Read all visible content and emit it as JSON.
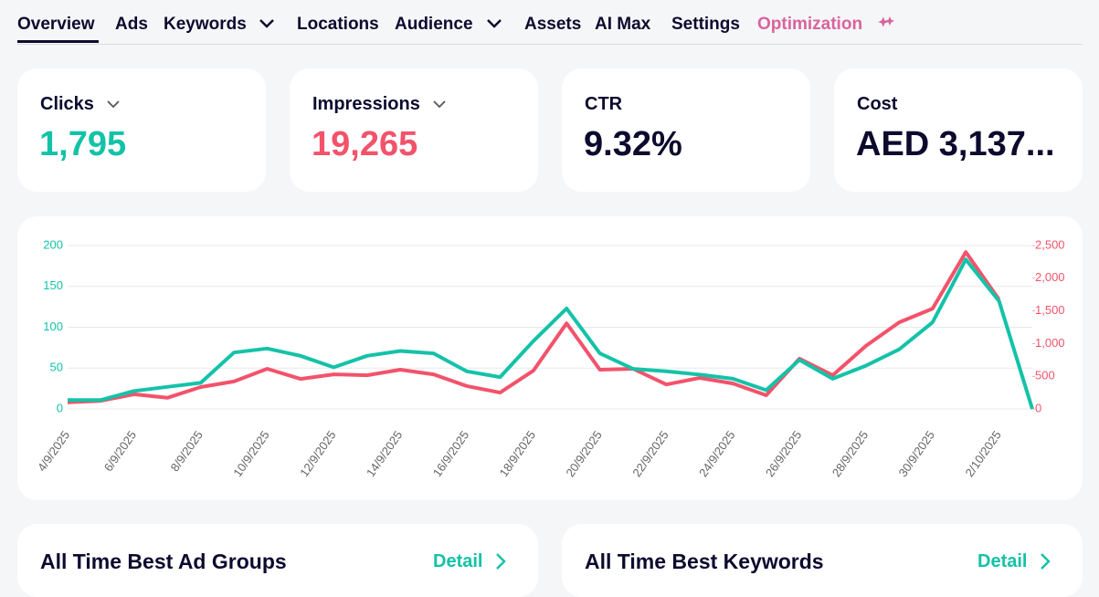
{
  "tabs": [
    "Overview",
    "Ads",
    "Keywords",
    "Locations",
    "Audience",
    "Assets",
    "AI Max",
    "Settings",
    "Optimization"
  ],
  "kpis": [
    {
      "label": "Clicks",
      "value": "1,795"
    },
    {
      "label": "Impressions",
      "value": "19,265"
    },
    {
      "label": "CTR",
      "value": "9.32%"
    },
    {
      "label": "Cost",
      "value": "AED 3,137..."
    }
  ],
  "chart_data": {
    "type": "line",
    "categories": [
      "4/9/2025",
      null,
      "6/9/2025",
      null,
      "8/9/2025",
      null,
      "10/9/2025",
      null,
      "12/9/2025",
      null,
      "14/9/2025",
      null,
      "16/9/2025",
      null,
      "18/9/2025",
      null,
      "20/9/2025",
      null,
      "22/9/2025",
      null,
      "24/9/2025",
      null,
      "26/9/2025",
      null,
      "28/9/2025",
      null,
      "30/9/2025",
      null,
      "2/10/2025",
      null
    ],
    "series": [
      {
        "color": "#f2536b",
        "axis": "y2",
        "values": [
          100,
          125,
          225,
          170,
          335,
          420,
          615,
          460,
          530,
          515,
          600,
          530,
          350,
          250,
          585,
          1310,
          600,
          615,
          375,
          475,
          390,
          210,
          770,
          515,
          965,
          1325,
          1535,
          2400,
          1675,
          null
        ]
      },
      {
        "color": "#14c2a8",
        "values": [
          11,
          11,
          22,
          27,
          32,
          69,
          74,
          65,
          51,
          65,
          71,
          68,
          46,
          39,
          83,
          123,
          68,
          49,
          46,
          42,
          37,
          23,
          60,
          37,
          53,
          73,
          106,
          183,
          132,
          0
        ]
      }
    ],
    "ylim": [
      0,
      200
    ],
    "yticks": [
      0,
      50,
      100,
      150,
      200
    ],
    "y2lim": [
      0,
      2500
    ],
    "y2ticks": [
      0,
      500,
      {
        "value": 1000,
        "label": "1,000"
      },
      {
        "value": 1500,
        "label": "1,500"
      },
      {
        "value": 2000,
        "label": "2,000"
      },
      {
        "value": 2500,
        "label": "2,500"
      }
    ],
    "grid": true
  },
  "sections": [
    {
      "title": "All Time Best Ad Groups",
      "link": "Detail"
    },
    {
      "title": "All Time Best Keywords",
      "link": "Detail"
    }
  ]
}
